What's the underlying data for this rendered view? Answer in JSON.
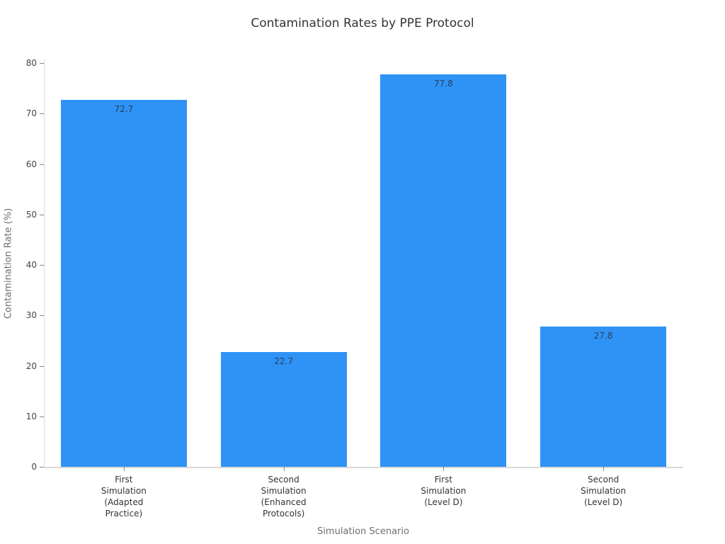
{
  "chart_data": {
    "type": "bar",
    "title": "Contamination Rates by PPE Protocol",
    "xlabel": "Simulation Scenario",
    "ylabel": "Contamination Rate (%)",
    "categories": [
      [
        "First",
        "Simulation",
        "(Adapted",
        "Practice)"
      ],
      [
        "Second",
        "Simulation",
        "(Enhanced",
        "Protocols)"
      ],
      [
        "First",
        "Simulation",
        "(Level D)"
      ],
      [
        "Second",
        "Simulation",
        "(Level D)"
      ]
    ],
    "values": [
      72.7,
      22.7,
      77.8,
      27.8
    ],
    "value_labels": [
      "72.7",
      "22.7",
      "77.8",
      "27.8"
    ],
    "ylim": [
      0,
      80
    ],
    "yticks": [
      0,
      10,
      20,
      30,
      40,
      50,
      60,
      70,
      80
    ],
    "grid": false,
    "legend_position": "none",
    "colors": {
      "bar_fill": "#2E93F5",
      "axis_line": "#D9D9D9",
      "tick_mark": "#888888",
      "tick_text": "#444444",
      "value_label_text": "#2A3F5F",
      "axis_title_text": "#6E6E6E",
      "title_text": "#333333",
      "background": "#FFFFFF"
    }
  }
}
